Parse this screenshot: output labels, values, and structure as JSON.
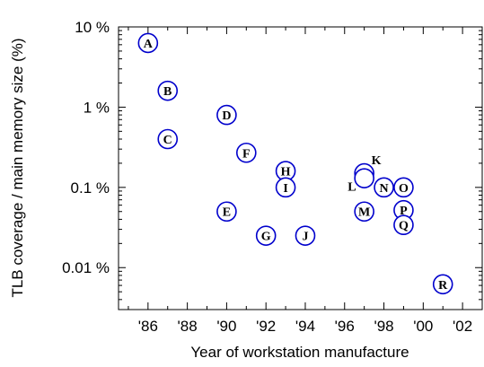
{
  "chart_data": {
    "type": "scatter",
    "title": "",
    "xlabel": "Year of workstation manufacture",
    "ylabel": "TLB coverage / main memory size (%)",
    "xlim": [
      1984.5,
      2003
    ],
    "ylim": [
      0.003,
      10
    ],
    "y_scale": "log",
    "grid": false,
    "x_ticks": [
      {
        "value": 1986,
        "label": "'86"
      },
      {
        "value": 1988,
        "label": "'88"
      },
      {
        "value": 1990,
        "label": "'90"
      },
      {
        "value": 1992,
        "label": "'92"
      },
      {
        "value": 1994,
        "label": "'94"
      },
      {
        "value": 1996,
        "label": "'96"
      },
      {
        "value": 1998,
        "label": "'98"
      },
      {
        "value": 2000,
        "label": "'00"
      },
      {
        "value": 2002,
        "label": "'02"
      }
    ],
    "y_ticks": [
      {
        "value": 10,
        "label": "10 %"
      },
      {
        "value": 1,
        "label": "1 %"
      },
      {
        "value": 0.1,
        "label": "0.1 %"
      },
      {
        "value": 0.01,
        "label": "0.01 %"
      }
    ],
    "points": [
      {
        "label": "A",
        "x": 1986,
        "y": 6.3
      },
      {
        "label": "B",
        "x": 1987,
        "y": 1.6
      },
      {
        "label": "C",
        "x": 1987,
        "y": 0.4
      },
      {
        "label": "D",
        "x": 1990,
        "y": 0.8
      },
      {
        "label": "E",
        "x": 1990,
        "y": 0.05
      },
      {
        "label": "F",
        "x": 1991,
        "y": 0.27
      },
      {
        "label": "G",
        "x": 1992,
        "y": 0.025
      },
      {
        "label": "H",
        "x": 1993,
        "y": 0.16
      },
      {
        "label": "I",
        "x": 1993,
        "y": 0.1
      },
      {
        "label": "J",
        "x": 1994,
        "y": 0.025
      },
      {
        "label": "K",
        "x": 1997,
        "y": 0.15,
        "label_outside": true
      },
      {
        "label": "L",
        "x": 1997,
        "y": 0.13,
        "label_outside": true
      },
      {
        "label": "M",
        "x": 1997,
        "y": 0.05
      },
      {
        "label": "N",
        "x": 1998,
        "y": 0.1
      },
      {
        "label": "O",
        "x": 1999,
        "y": 0.1
      },
      {
        "label": "P",
        "x": 1999,
        "y": 0.052
      },
      {
        "label": "Q",
        "x": 1999,
        "y": 0.034
      },
      {
        "label": "R",
        "x": 2001,
        "y": 0.0062
      }
    ],
    "marker": {
      "shape": "circle-outline",
      "color": "#0000cc"
    }
  }
}
